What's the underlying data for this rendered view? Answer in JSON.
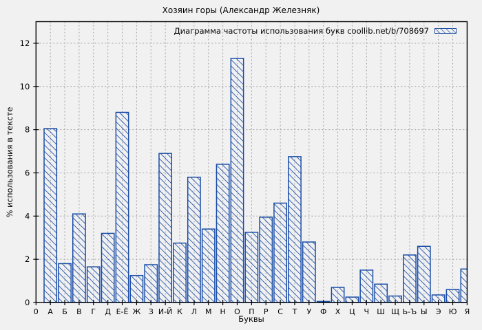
{
  "chart_data": {
    "type": "bar",
    "title": "Хозяин горы (Александр Железняк)",
    "legend_label": "Диаграмма частоты использования букв coollib.net/b/708697",
    "legend_position": "top-right-inside",
    "xlabel": "Буквы",
    "ylabel": "% использования в тексте",
    "categories": [
      "0",
      "А",
      "Б",
      "В",
      "Г",
      "Д",
      "Е-Ё",
      "Ж",
      "З",
      "И-Й",
      "К",
      "Л",
      "М",
      "Н",
      "О",
      "П",
      "Р",
      "С",
      "Т",
      "У",
      "Ф",
      "Х",
      "Ц",
      "Ч",
      "Ш",
      "Щ",
      "Ь-Ъ",
      "Ы",
      "Э",
      "Ю",
      "Я"
    ],
    "values": [
      0,
      8.05,
      1.8,
      4.1,
      1.65,
      3.2,
      8.8,
      1.25,
      1.75,
      6.9,
      2.75,
      5.8,
      3.4,
      6.4,
      11.3,
      3.25,
      3.95,
      4.6,
      6.75,
      2.8,
      0.05,
      0.7,
      0.25,
      1.5,
      0.85,
      0.3,
      2.2,
      2.6,
      0.35,
      0.6,
      1.55
    ],
    "yticks": [
      0,
      2,
      4,
      6,
      8,
      10,
      12
    ],
    "ylim": [
      0,
      13
    ],
    "grid": true,
    "grid_style": "dashed",
    "grid_color": "#a0a0a0",
    "bar_color": "#1a4da6",
    "bar_fill": "diagonal-hatch",
    "border_color": "#000000",
    "background_color": "#f1f1f2"
  }
}
